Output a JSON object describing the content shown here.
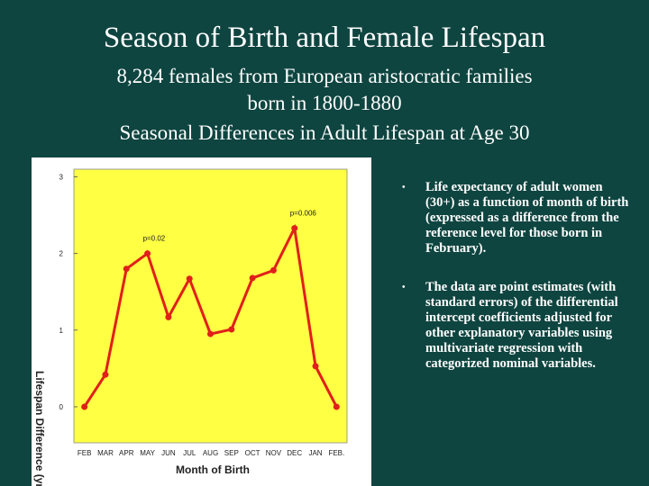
{
  "title": "Season of Birth and Female Lifespan",
  "subtitle": [
    "8,284 females from European aristocratic families",
    "born in 1800-1880",
    "Seasonal Differences in Adult Lifespan at Age 30"
  ],
  "chart_data": {
    "type": "line",
    "x_label": "Month of Birth",
    "y_label": "Lifespan Difference (yr",
    "categories": [
      "FEB",
      "MAR",
      "APR",
      "MAY",
      "JUN",
      "JUL",
      "AUG",
      "SEP",
      "OCT",
      "NOV",
      "DEC",
      "JAN",
      "FEB."
    ],
    "values": [
      0.0,
      0.42,
      1.8,
      2.0,
      1.17,
      1.67,
      0.95,
      1.01,
      1.68,
      1.78,
      2.33,
      0.53,
      0.0
    ],
    "color": "#e0201a",
    "ylim": [
      -0.47,
      3.1
    ],
    "yticks": [
      0,
      1,
      2,
      3
    ],
    "annotations": [
      {
        "text": "p=0.02",
        "index": 3
      },
      {
        "text": "p=0.006",
        "index": 10
      }
    ]
  },
  "bullets": [
    " Life expectancy of adult women (30+) as a function of month of birth (expressed as a difference from the reference level for those born in February).",
    "The data are point  estimates (with standard errors) of the differential intercept coefficients adjusted for other explanatory variables using multivariate regression with categorized nominal variables."
  ]
}
